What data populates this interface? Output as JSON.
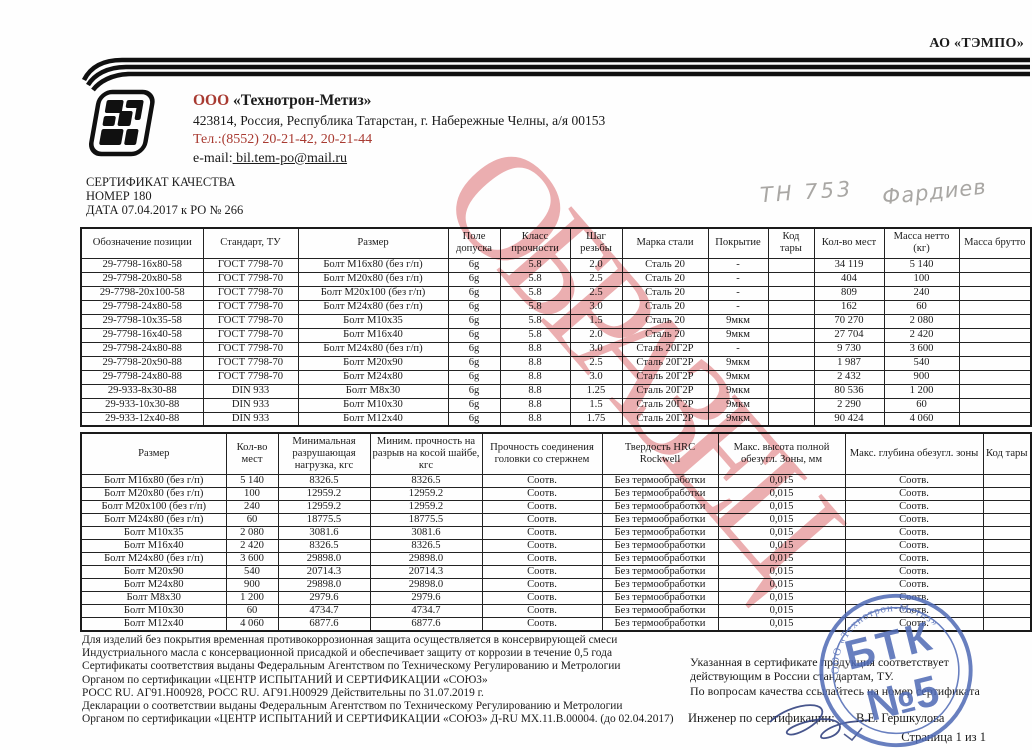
{
  "org_top_right": "АО «ТЭМПО»",
  "company": {
    "prefix": "ООО",
    "name": " «Технотрон-Метиз»",
    "address": "423814, Россия, Республика Татарстан,  г. Набережные Челны, а/я 00153",
    "phone": "Тел.:(8552) 20-21-42, 20-21-44",
    "email_label": "e-mail:",
    "email": " bil.tem-po@mail.ru"
  },
  "certificate": {
    "title": "СЕРТИФИКАТ КАЧЕСТВА",
    "number": "НОМЕР 180",
    "date": "ДАТА 07.04.2017  к РО № 266"
  },
  "handwriting": {
    "left": "ТН 753",
    "right": "Фардиев"
  },
  "watermark_text": "ОБРАЗЕЦ",
  "table1": {
    "headers": [
      "Обозначение позиции",
      "Стандарт, ТУ",
      "Размер",
      "Поле допуска",
      "Класс прочности",
      "Шаг резьбы",
      "Марка стали",
      "Покрытие",
      "Код тары",
      "Кол-во мест",
      "Масса нетто (кг)",
      "Масса брутто"
    ],
    "rows": [
      [
        "29-7798-16x80-58",
        "ГОСТ 7798-70",
        "Болт М16х80 (без г/п)",
        "6g",
        "5.8",
        "2.0",
        "Сталь 20",
        "-",
        "",
        "34 119",
        "5 140",
        ""
      ],
      [
        "29-7798-20x80-58",
        "ГОСТ 7798-70",
        "Болт М20х80 (без г/п)",
        "6g",
        "5.8",
        "2.5",
        "Сталь 20",
        "-",
        "",
        "404",
        "100",
        ""
      ],
      [
        "29-7798-20x100-58",
        "ГОСТ 7798-70",
        "Болт М20х100 (без г/п)",
        "6g",
        "5.8",
        "2.5",
        "Сталь 20",
        "-",
        "",
        "809",
        "240",
        ""
      ],
      [
        "29-7798-24x80-58",
        "ГОСТ 7798-70",
        "Болт М24х80 (без г/п)",
        "6g",
        "5.8",
        "3.0",
        "Сталь 20",
        "-",
        "",
        "162",
        "60",
        ""
      ],
      [
        "29-7798-10x35-58",
        "ГОСТ 7798-70",
        "Болт М10х35",
        "6g",
        "5.8",
        "1.5",
        "Сталь 20",
        "9мкм",
        "",
        "70 270",
        "2 080",
        ""
      ],
      [
        "29-7798-16x40-58",
        "ГОСТ 7798-70",
        "Болт М16х40",
        "6g",
        "5.8",
        "2.0",
        "Сталь 20",
        "9мкм",
        "",
        "27 704",
        "2 420",
        ""
      ],
      [
        "29-7798-24x80-88",
        "ГОСТ 7798-70",
        "Болт М24х80 (без г/п)",
        "6g",
        "8.8",
        "3.0",
        "Сталь 20Г2Р",
        "-",
        "",
        "9 730",
        "3 600",
        ""
      ],
      [
        "29-7798-20x90-88",
        "ГОСТ 7798-70",
        "Болт М20х90",
        "6g",
        "8.8",
        "2.5",
        "Сталь 20Г2Р",
        "9мкм",
        "",
        "1 987",
        "540",
        ""
      ],
      [
        "29-7798-24x80-88",
        "ГОСТ 7798-70",
        "Болт М24х80",
        "6g",
        "8.8",
        "3.0",
        "Сталь 20Г2Р",
        "9мкм",
        "",
        "2 432",
        "900",
        ""
      ],
      [
        "29-933-8x30-88",
        "DIN 933",
        "Болт М8х30",
        "6g",
        "8.8",
        "1.25",
        "Сталь 20Г2Р",
        "9мкм",
        "",
        "80 536",
        "1 200",
        ""
      ],
      [
        "29-933-10x30-88",
        "DIN 933",
        "Болт М10х30",
        "6g",
        "8.8",
        "1.5",
        "Сталь 20Г2Р",
        "9мкм",
        "",
        "2 290",
        "60",
        ""
      ],
      [
        "29-933-12x40-88",
        "DIN 933",
        "Болт М12х40",
        "6g",
        "8.8",
        "1.75",
        "Сталь 20Г2Р",
        "9мкм",
        "",
        "90 424",
        "4 060",
        ""
      ]
    ]
  },
  "table2": {
    "headers": [
      "Размер",
      "Кол-во мест",
      "Минимальная разрушающая нагрузка, кгс",
      "Миним. прочность на разрыв на косой шайбе, кгс",
      "Прочность соединения головки со стержнем",
      "Твердость HRC Rockwell",
      "Макс. высота полной обезугл. Зоны, мм",
      "Макс. глубина обезугл. зоны",
      "Код тары"
    ],
    "rows": [
      [
        "Болт М16х80 (без г/п)",
        "5 140",
        "8326.5",
        "8326.5",
        "Соотв.",
        "Без термообработки",
        "0,015",
        "Соотв.",
        ""
      ],
      [
        "Болт М20х80 (без г/п)",
        "100",
        "12959.2",
        "12959.2",
        "Соотв.",
        "Без термообработки",
        "0,015",
        "Соотв.",
        ""
      ],
      [
        "Болт М20х100 (без г/п)",
        "240",
        "12959.2",
        "12959.2",
        "Соотв.",
        "Без термообработки",
        "0,015",
        "Соотв.",
        ""
      ],
      [
        "Болт М24х80 (без г/п)",
        "60",
        "18775.5",
        "18775.5",
        "Соотв.",
        "Без термообработки",
        "0,015",
        "Соотв.",
        ""
      ],
      [
        "Болт М10х35",
        "2 080",
        "3081.6",
        "3081.6",
        "Соотв.",
        "Без термообработки",
        "0,015",
        "Соотв.",
        ""
      ],
      [
        "Болт М16х40",
        "2 420",
        "8326.5",
        "8326.5",
        "Соотв.",
        "Без термообработки",
        "0,015",
        "Соотв.",
        ""
      ],
      [
        "Болт М24х80 (без г/п)",
        "3 600",
        "29898.0",
        "29898.0",
        "Соотв.",
        "Без термообработки",
        "0,015",
        "Соотв.",
        ""
      ],
      [
        "Болт М20х90",
        "540",
        "20714.3",
        "20714.3",
        "Соотв.",
        "Без термообработки",
        "0,015",
        "Соотв.",
        ""
      ],
      [
        "Болт М24х80",
        "900",
        "29898.0",
        "29898.0",
        "Соотв.",
        "Без термообработки",
        "0,015",
        "Соотв.",
        ""
      ],
      [
        "Болт М8х30",
        "1 200",
        "2979.6",
        "2979.6",
        "Соотв.",
        "Без термообработки",
        "0,015",
        "Соотв.",
        ""
      ],
      [
        "Болт М10х30",
        "60",
        "4734.7",
        "4734.7",
        "Соотв.",
        "Без термообработки",
        "0,015",
        "Соотв.",
        ""
      ],
      [
        "Болт М12х40",
        "4 060",
        "6877.6",
        "6877.6",
        "Соотв.",
        "Без термообработки",
        "0,015",
        "Соотв.",
        ""
      ]
    ]
  },
  "notes_left": [
    "Для изделий без покрытия временная противокоррозионная защита осуществляется в консервирующей смеси",
    "Индустриального масла с консервационной присадкой и обеспечивает защиту от коррозии в течение 0,5 года",
    "Сертификаты соответствия выданы Федеральным Агентством по Техническому Регулированию и Метрологии",
    "Органом по сертификации «ЦЕНТР ИСПЫТАНИЙ И СЕРТИФИКАЦИИ «СОЮЗ»",
    "РОСС RU. АГ91.Н00928,  РОСС RU. АГ91.Н00929 Действительны по 31.07.2019 г.",
    "Декларации о соответствии выданы Федеральным Агентством по Техническому Регулированию и Метрологии",
    "Органом по сертификации «ЦЕНТР ИСПЫТАНИЙ И СЕРТИФИКАЦИИ «СОЮЗ» Д-RU МХ.11.В.00004. (до 02.04.2017)"
  ],
  "notes_right": [
    "Указанная в сертификате продукция соответствует",
    "действующим в России стандартам, ТУ.",
    "По вопросам качества ссылайтесь на номер сертификата"
  ],
  "engineer": {
    "label": "Инженер по сертификации:",
    "name": "В.Е. Гершкулова"
  },
  "page_number": "Страница 1 из 1",
  "stamp": {
    "arc_text": "ООО «Технотрон-Метиз»",
    "line1": "БТК",
    "line2": "№5"
  },
  "colors": {
    "accent_red": "#a83a31",
    "stamp_blue": "#4f6ab5",
    "watermark_red": "#d95f63",
    "ink_black": "#1b1b1b",
    "pencil_gray": "#a9a7a4"
  }
}
